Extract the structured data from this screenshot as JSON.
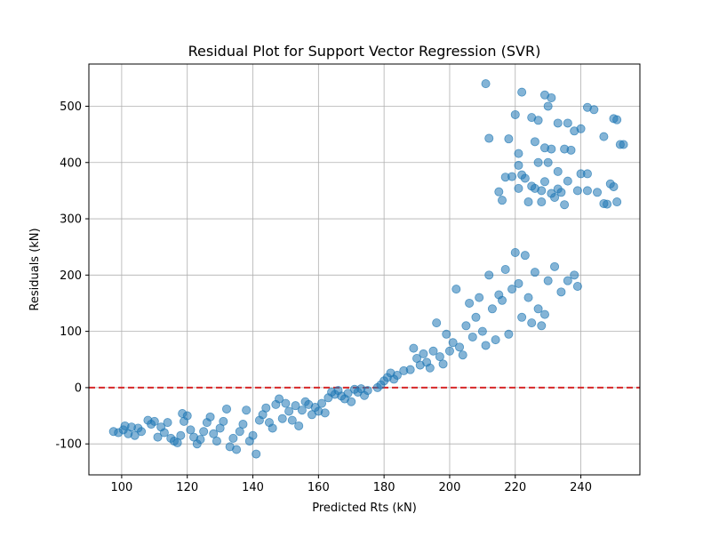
{
  "chart_data": {
    "type": "scatter",
    "title": "Residual Plot for Support Vector Regression (SVR)",
    "xlabel": "Predicted Rts (kN)",
    "ylabel": "Residuals (kN)",
    "xlim": [
      90,
      258
    ],
    "ylim": [
      -155,
      575
    ],
    "xticks": [
      100,
      120,
      140,
      160,
      180,
      200,
      220,
      240
    ],
    "yticks": [
      -100,
      0,
      100,
      200,
      300,
      400,
      500
    ],
    "grid": true,
    "reference_line": {
      "y": 0,
      "style": "dashed",
      "color": "#d62728"
    },
    "point_color": "#1f77b4",
    "point_alpha": 0.55,
    "points": [
      [
        97.5,
        -78
      ],
      [
        99,
        -80
      ],
      [
        100.5,
        -75
      ],
      [
        101,
        -68
      ],
      [
        102,
        -82
      ],
      [
        103,
        -70
      ],
      [
        104,
        -85
      ],
      [
        105,
        -72
      ],
      [
        106,
        -78
      ],
      [
        108,
        -58
      ],
      [
        109,
        -65
      ],
      [
        110,
        -60
      ],
      [
        111,
        -88
      ],
      [
        112,
        -70
      ],
      [
        113,
        -80
      ],
      [
        114,
        -62
      ],
      [
        115,
        -90
      ],
      [
        116,
        -95
      ],
      [
        117,
        -98
      ],
      [
        118,
        -85
      ],
      [
        118.5,
        -46
      ],
      [
        119,
        -60
      ],
      [
        120,
        -50
      ],
      [
        121,
        -75
      ],
      [
        122,
        -88
      ],
      [
        123,
        -100
      ],
      [
        124,
        -92
      ],
      [
        125,
        -78
      ],
      [
        126,
        -62
      ],
      [
        127,
        -52
      ],
      [
        128,
        -82
      ],
      [
        129,
        -95
      ],
      [
        130,
        -72
      ],
      [
        131,
        -60
      ],
      [
        132,
        -38
      ],
      [
        133,
        -105
      ],
      [
        134,
        -90
      ],
      [
        135,
        -110
      ],
      [
        136,
        -78
      ],
      [
        137,
        -65
      ],
      [
        138,
        -40
      ],
      [
        139,
        -95
      ],
      [
        140,
        -85
      ],
      [
        141,
        -118
      ],
      [
        142,
        -58
      ],
      [
        143,
        -48
      ],
      [
        144,
        -36
      ],
      [
        145,
        -62
      ],
      [
        146,
        -72
      ],
      [
        147,
        -30
      ],
      [
        148,
        -20
      ],
      [
        149,
        -55
      ],
      [
        150,
        -28
      ],
      [
        151,
        -42
      ],
      [
        152,
        -58
      ],
      [
        153,
        -32
      ],
      [
        154,
        -68
      ],
      [
        155,
        -40
      ],
      [
        156,
        -25
      ],
      [
        157,
        -30
      ],
      [
        158,
        -48
      ],
      [
        159,
        -35
      ],
      [
        160,
        -42
      ],
      [
        161,
        -28
      ],
      [
        162,
        -45
      ],
      [
        163,
        -18
      ],
      [
        164,
        -8
      ],
      [
        165,
        -12
      ],
      [
        166,
        -5
      ],
      [
        167,
        -15
      ],
      [
        168,
        -20
      ],
      [
        169,
        -10
      ],
      [
        170,
        -25
      ],
      [
        171,
        -3
      ],
      [
        172,
        -8
      ],
      [
        173,
        -2
      ],
      [
        174,
        -14
      ],
      [
        175,
        -5
      ],
      [
        178,
        0
      ],
      [
        179,
        5
      ],
      [
        180,
        12
      ],
      [
        181,
        18
      ],
      [
        182,
        26
      ],
      [
        183,
        15
      ],
      [
        184,
        22
      ],
      [
        186,
        30
      ],
      [
        188,
        32
      ],
      [
        189,
        70
      ],
      [
        190,
        52
      ],
      [
        191,
        40
      ],
      [
        192,
        60
      ],
      [
        193,
        45
      ],
      [
        194,
        35
      ],
      [
        195,
        65
      ],
      [
        196,
        115
      ],
      [
        197,
        55
      ],
      [
        198,
        42
      ],
      [
        199,
        95
      ],
      [
        200,
        65
      ],
      [
        201,
        80
      ],
      [
        202,
        175
      ],
      [
        203,
        72
      ],
      [
        204,
        58
      ],
      [
        205,
        110
      ],
      [
        206,
        150
      ],
      [
        207,
        90
      ],
      [
        208,
        125
      ],
      [
        209,
        160
      ],
      [
        210,
        100
      ],
      [
        211,
        75
      ],
      [
        212,
        200
      ],
      [
        213,
        140
      ],
      [
        214,
        85
      ],
      [
        215,
        165
      ],
      [
        216,
        155
      ],
      [
        217,
        210
      ],
      [
        218,
        95
      ],
      [
        219,
        175
      ],
      [
        220,
        240
      ],
      [
        221,
        185
      ],
      [
        222,
        125
      ],
      [
        223,
        235
      ],
      [
        224,
        160
      ],
      [
        225,
        115
      ],
      [
        226,
        205
      ],
      [
        227,
        140
      ],
      [
        228,
        110
      ],
      [
        229,
        130
      ],
      [
        230,
        190
      ],
      [
        232,
        215
      ],
      [
        234,
        170
      ],
      [
        236,
        190
      ],
      [
        238,
        200
      ],
      [
        239,
        180
      ],
      [
        211,
        540
      ],
      [
        222,
        525
      ],
      [
        229,
        520
      ],
      [
        231,
        515
      ],
      [
        242,
        498
      ],
      [
        244,
        494
      ],
      [
        230,
        500
      ],
      [
        220,
        485
      ],
      [
        225,
        480
      ],
      [
        227,
        475
      ],
      [
        233,
        470
      ],
      [
        236,
        470
      ],
      [
        240,
        460
      ],
      [
        250,
        478
      ],
      [
        251,
        476
      ],
      [
        212,
        443
      ],
      [
        218,
        442
      ],
      [
        226,
        437
      ],
      [
        229,
        426
      ],
      [
        231,
        424
      ],
      [
        235,
        424
      ],
      [
        237,
        422
      ],
      [
        238,
        456
      ],
      [
        247,
        446
      ],
      [
        252,
        432
      ],
      [
        253,
        432
      ],
      [
        221,
        416
      ],
      [
        227,
        400
      ],
      [
        230,
        400
      ],
      [
        233,
        384
      ],
      [
        240,
        380
      ],
      [
        242,
        380
      ],
      [
        215,
        348
      ],
      [
        217,
        374
      ],
      [
        219,
        375
      ],
      [
        221,
        395
      ],
      [
        222,
        378
      ],
      [
        223,
        372
      ],
      [
        225,
        358
      ],
      [
        226,
        354
      ],
      [
        228,
        350
      ],
      [
        229,
        366
      ],
      [
        231,
        345
      ],
      [
        233,
        353
      ],
      [
        234,
        347
      ],
      [
        236,
        367
      ],
      [
        239,
        350
      ],
      [
        245,
        347
      ],
      [
        247,
        327
      ],
      [
        248,
        326
      ],
      [
        249,
        362
      ],
      [
        250,
        357
      ],
      [
        251,
        330
      ],
      [
        216,
        333
      ],
      [
        221,
        354
      ],
      [
        224,
        330
      ],
      [
        228,
        330
      ],
      [
        232,
        338
      ],
      [
        235,
        325
      ],
      [
        242,
        350
      ]
    ]
  }
}
